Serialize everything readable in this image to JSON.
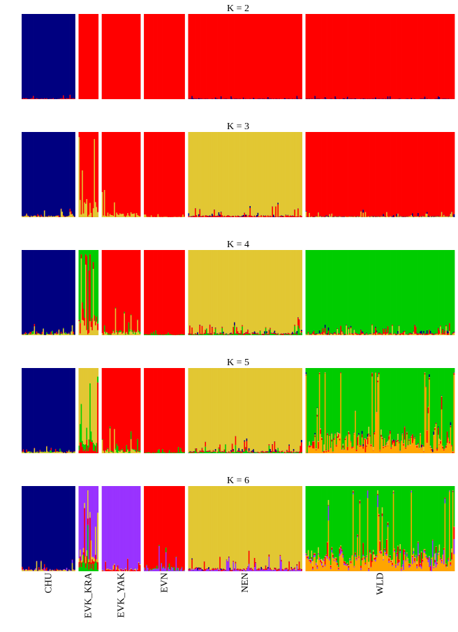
{
  "chart_data": {
    "type": "bar",
    "subtype": "stacked admixture (STRUCTURE/ADMIXTURE) plot",
    "panels": [
      {
        "title": "K = 2",
        "k": 2
      },
      {
        "title": "K = 3",
        "k": 3
      },
      {
        "title": "K = 4",
        "k": 4
      },
      {
        "title": "K = 5",
        "k": 5
      },
      {
        "title": "K = 6",
        "k": 6
      }
    ],
    "populations": [
      {
        "label": "CHU",
        "relative_width": 76
      },
      {
        "label": "EVK_KRA",
        "relative_width": 28
      },
      {
        "label": "EVK_YAK",
        "relative_width": 55
      },
      {
        "label": "EVN",
        "relative_width": 58
      },
      {
        "label": "NEN",
        "relative_width": 162
      },
      {
        "label": "WLD",
        "relative_width": 212
      }
    ],
    "clusters": [
      {
        "name": "cluster-blue",
        "color": "#000080"
      },
      {
        "name": "cluster-red",
        "color": "#ff0000"
      },
      {
        "name": "cluster-yellow",
        "color": "#e2c733"
      },
      {
        "name": "cluster-green",
        "color": "#00cc00"
      },
      {
        "name": "cluster-orange",
        "color": "#ffa500"
      },
      {
        "name": "cluster-purple",
        "color": "#9933ff"
      }
    ],
    "ylim": [
      0,
      1
    ],
    "xlabel": "",
    "ylabel": "",
    "mean_ancestry": {
      "K = 2": {
        "CHU": {
          "cluster-blue": 0.98,
          "cluster-red": 0.02
        },
        "EVK_KRA": {
          "cluster-red": 1.0
        },
        "EVK_YAK": {
          "cluster-red": 1.0
        },
        "EVN": {
          "cluster-red": 1.0
        },
        "NEN": {
          "cluster-red": 0.99,
          "cluster-blue": 0.01
        },
        "WLD": {
          "cluster-red": 0.99,
          "cluster-blue": 0.01
        }
      },
      "K = 3": {
        "CHU": {
          "cluster-blue": 0.96,
          "cluster-yellow": 0.03,
          "cluster-red": 0.01
        },
        "EVK_KRA": {
          "cluster-red": 0.6,
          "cluster-yellow": 0.4
        },
        "EVK_YAK": {
          "cluster-red": 0.9,
          "cluster-yellow": 0.1
        },
        "EVN": {
          "cluster-red": 0.99,
          "cluster-yellow": 0.01
        },
        "NEN": {
          "cluster-yellow": 0.95,
          "cluster-red": 0.04,
          "cluster-blue": 0.01
        },
        "WLD": {
          "cluster-red": 0.97,
          "cluster-yellow": 0.02,
          "cluster-blue": 0.01
        }
      },
      "K = 4": {
        "CHU": {
          "cluster-blue": 0.95,
          "cluster-yellow": 0.03,
          "cluster-green": 0.01,
          "cluster-red": 0.01
        },
        "EVK_KRA": {
          "cluster-green": 0.45,
          "cluster-yellow": 0.3,
          "cluster-red": 0.25
        },
        "EVK_YAK": {
          "cluster-red": 0.88,
          "cluster-yellow": 0.08,
          "cluster-green": 0.04
        },
        "EVN": {
          "cluster-red": 0.98,
          "cluster-green": 0.02
        },
        "NEN": {
          "cluster-yellow": 0.93,
          "cluster-green": 0.03,
          "cluster-red": 0.03,
          "cluster-blue": 0.01
        },
        "WLD": {
          "cluster-green": 0.93,
          "cluster-yellow": 0.03,
          "cluster-red": 0.03,
          "cluster-blue": 0.01
        }
      },
      "K = 5": {
        "CHU": {
          "cluster-blue": 0.95,
          "cluster-yellow": 0.03,
          "cluster-green": 0.01,
          "cluster-red": 0.01
        },
        "EVK_KRA": {
          "cluster-yellow": 0.45,
          "cluster-green": 0.25,
          "cluster-red": 0.3
        },
        "EVK_YAK": {
          "cluster-red": 0.88,
          "cluster-yellow": 0.08,
          "cluster-green": 0.04
        },
        "EVN": {
          "cluster-red": 0.98,
          "cluster-green": 0.02
        },
        "NEN": {
          "cluster-yellow": 0.93,
          "cluster-green": 0.03,
          "cluster-red": 0.03,
          "cluster-blue": 0.01
        },
        "WLD": {
          "cluster-green": 0.55,
          "cluster-orange": 0.38,
          "cluster-red": 0.04,
          "cluster-yellow": 0.02,
          "cluster-blue": 0.01
        }
      },
      "K = 6": {
        "CHU": {
          "cluster-blue": 0.95,
          "cluster-yellow": 0.03,
          "cluster-purple": 0.01,
          "cluster-red": 0.01
        },
        "EVK_KRA": {
          "cluster-purple": 0.45,
          "cluster-green": 0.2,
          "cluster-yellow": 0.15,
          "cluster-red": 0.2
        },
        "EVK_YAK": {
          "cluster-purple": 0.93,
          "cluster-red": 0.05,
          "cluster-yellow": 0.02
        },
        "EVN": {
          "cluster-red": 0.9,
          "cluster-purple": 0.08,
          "cluster-green": 0.02
        },
        "NEN": {
          "cluster-yellow": 0.9,
          "cluster-purple": 0.05,
          "cluster-red": 0.04,
          "cluster-blue": 0.01
        },
        "WLD": {
          "cluster-green": 0.5,
          "cluster-orange": 0.38,
          "cluster-purple": 0.05,
          "cluster-red": 0.05,
          "cluster-yellow": 0.02
        }
      }
    }
  }
}
